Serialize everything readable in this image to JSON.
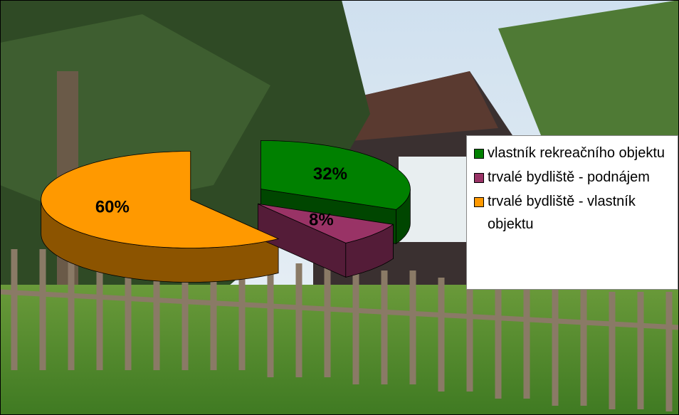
{
  "chart_data": {
    "type": "pie3d",
    "categories": [
      "vlastník rekreačního objektu",
      "trvalé bydliště - podnájem",
      "trvalé bydliště - vlastník objektu"
    ],
    "values": [
      32,
      8,
      60
    ],
    "value_labels": [
      "32%",
      "8%",
      "60%"
    ],
    "colors": [
      "#008000",
      "#993366",
      "#ff9900"
    ],
    "legend": "right"
  }
}
